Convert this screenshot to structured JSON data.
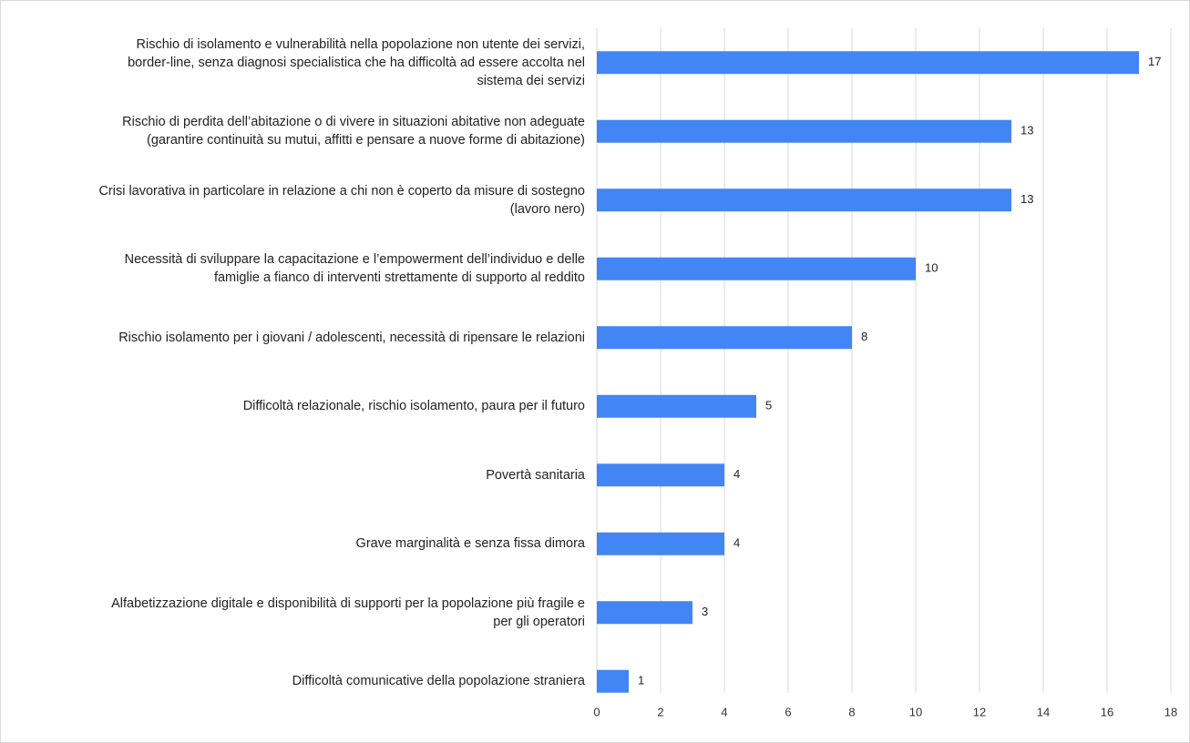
{
  "chart_data": {
    "type": "bar",
    "orientation": "horizontal",
    "categories": [
      [
        "Rischio di isolamento e vulnerabilità nella popolazione non utente dei servizi,",
        "border-line, senza diagnosi specialistica che ha difficoltà ad essere accolta nel",
        "sistema dei servizi"
      ],
      [
        "Rischio di perdita dell’abitazione o di vivere in situazioni abitative non adeguate",
        "(garantire continuità su mutui, affitti e pensare a nuove forme di abitazione)"
      ],
      [
        "Crisi lavorativa in particolare in relazione a chi non è coperto da misure di sostegno",
        "(lavoro nero)"
      ],
      [
        "Necessità di sviluppare la capacitazione e l’empowerment dell’individuo e delle",
        "famiglie a fianco di interventi strettamente di supporto al reddito"
      ],
      [
        "Rischio isolamento per i giovani / adolescenti, necessità di ripensare le relazioni"
      ],
      [
        "Difficoltà relazionale, rischio isolamento, paura per il futuro"
      ],
      [
        "Povertà sanitaria"
      ],
      [
        "Grave marginalità e senza fissa dimora"
      ],
      [
        "Alfabetizzazione digitale e disponibilità di supporti per la popolazione più fragile e",
        "per gli operatori"
      ],
      [
        "Difficoltà comunicative della popolazione straniera"
      ]
    ],
    "values": [
      17,
      13,
      13,
      10,
      8,
      5,
      4,
      4,
      3,
      1
    ],
    "xlim": [
      0,
      18
    ],
    "xticks": [
      "0",
      "2",
      "4",
      "6",
      "8",
      "10",
      "12",
      "14",
      "16",
      "18"
    ],
    "grid": true,
    "data_labels": true,
    "bar_color": "#4285f4",
    "grid_color": "#d9d9d9"
  }
}
